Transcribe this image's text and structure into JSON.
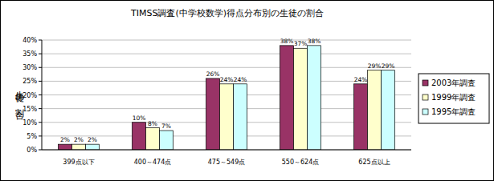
{
  "chart_data": {
    "type": "bar",
    "title": "TIMSS調査(中学校数学)得点分布別の生徒の割合",
    "y_label": "生徒の割合",
    "categories": [
      "399点以下",
      "400～474点",
      "475～549点",
      "550～624点",
      "625点以上"
    ],
    "series": [
      {
        "name": "2003年調査",
        "color": "#993366",
        "values": [
          2,
          10,
          26,
          38,
          24
        ],
        "value_labels": [
          "2%",
          "10%",
          "26%",
          "38%",
          "24%"
        ]
      },
      {
        "name": "1999年調査",
        "color": "#ffffcc",
        "values": [
          2,
          8,
          24,
          37,
          29
        ],
        "value_labels": [
          "2%",
          "8%",
          "24%",
          "37%",
          "29%"
        ]
      },
      {
        "name": "1995年調査",
        "color": "#ccffff",
        "values": [
          2,
          7,
          24,
          38,
          29
        ],
        "value_labels": [
          "2%",
          "7%",
          "24%",
          "38%",
          "29%"
        ]
      }
    ],
    "ylim": [
      0,
      40
    ],
    "yticks": [
      {
        "value": 0,
        "label": "0%"
      },
      {
        "value": 5,
        "label": "5%"
      },
      {
        "value": 10,
        "label": "10%"
      },
      {
        "value": 15,
        "label": "15%"
      },
      {
        "value": 20,
        "label": "20%"
      },
      {
        "value": 25,
        "label": "25%"
      },
      {
        "value": 30,
        "label": "30%"
      },
      {
        "value": 35,
        "label": "35%"
      },
      {
        "value": 40,
        "label": "40%"
      }
    ],
    "grid": true,
    "legend": "right",
    "data_labels": true
  }
}
